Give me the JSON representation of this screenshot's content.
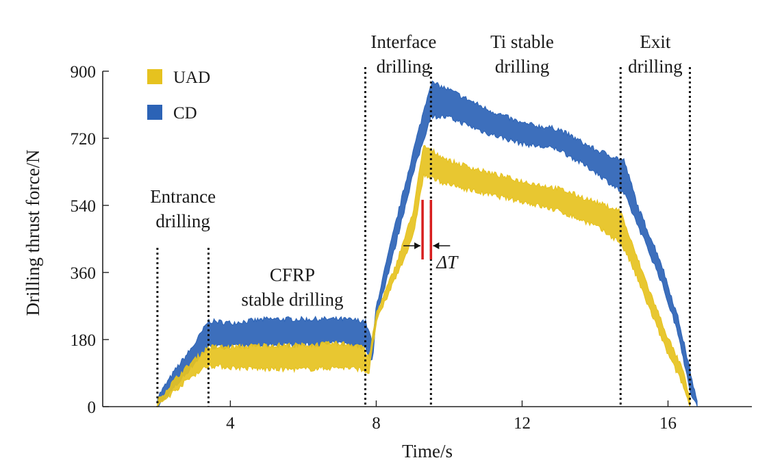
{
  "chart_data": {
    "type": "area",
    "title": "",
    "xlabel": "Time/s",
    "ylabel": "Drilling thrust force/N",
    "xlim": [
      0.5,
      18.3
    ],
    "ylim": [
      0,
      900
    ],
    "xticks": [
      4,
      8,
      12,
      16
    ],
    "yticks": [
      0,
      180,
      360,
      540,
      720,
      900
    ],
    "grid": false,
    "legend": {
      "position": "top-left",
      "entries": [
        "UAD",
        "CD"
      ]
    },
    "series": [
      {
        "name": "UAD",
        "color": "#e6c21f",
        "points": [
          {
            "x": 2.0,
            "lo": 0,
            "hi": 15
          },
          {
            "x": 2.5,
            "lo": 45,
            "hi": 75
          },
          {
            "x": 3.0,
            "lo": 85,
            "hi": 125
          },
          {
            "x": 3.4,
            "lo": 110,
            "hi": 160
          },
          {
            "x": 4.0,
            "lo": 105,
            "hi": 160
          },
          {
            "x": 5.0,
            "lo": 100,
            "hi": 165
          },
          {
            "x": 6.0,
            "lo": 100,
            "hi": 165
          },
          {
            "x": 7.0,
            "lo": 105,
            "hi": 170
          },
          {
            "x": 7.6,
            "lo": 100,
            "hi": 165
          },
          {
            "x": 7.8,
            "lo": 90,
            "hi": 130
          },
          {
            "x": 8.0,
            "lo": 225,
            "hi": 250
          },
          {
            "x": 8.5,
            "lo": 340,
            "hi": 370
          },
          {
            "x": 9.0,
            "lo": 450,
            "hi": 520
          },
          {
            "x": 9.3,
            "lo": 620,
            "hi": 700
          },
          {
            "x": 10.0,
            "lo": 595,
            "hi": 660
          },
          {
            "x": 11.0,
            "lo": 570,
            "hi": 630
          },
          {
            "x": 12.0,
            "lo": 550,
            "hi": 605
          },
          {
            "x": 13.0,
            "lo": 525,
            "hi": 585
          },
          {
            "x": 14.0,
            "lo": 485,
            "hi": 550
          },
          {
            "x": 14.7,
            "lo": 440,
            "hi": 525
          },
          {
            "x": 15.0,
            "lo": 380,
            "hi": 440
          },
          {
            "x": 15.5,
            "lo": 260,
            "hi": 310
          },
          {
            "x": 16.0,
            "lo": 140,
            "hi": 185
          },
          {
            "x": 16.4,
            "lo": 60,
            "hi": 100
          },
          {
            "x": 16.6,
            "lo": 0,
            "hi": 20
          }
        ]
      },
      {
        "name": "CD",
        "color": "#2c63b6",
        "points": [
          {
            "x": 2.0,
            "lo": 0,
            "hi": 25
          },
          {
            "x": 2.5,
            "lo": 55,
            "hi": 100
          },
          {
            "x": 3.0,
            "lo": 115,
            "hi": 165
          },
          {
            "x": 3.4,
            "lo": 160,
            "hi": 230
          },
          {
            "x": 4.0,
            "lo": 160,
            "hi": 225
          },
          {
            "x": 5.0,
            "lo": 165,
            "hi": 235
          },
          {
            "x": 6.0,
            "lo": 165,
            "hi": 235
          },
          {
            "x": 7.0,
            "lo": 170,
            "hi": 235
          },
          {
            "x": 7.7,
            "lo": 160,
            "hi": 230
          },
          {
            "x": 7.9,
            "lo": 120,
            "hi": 170
          },
          {
            "x": 8.0,
            "lo": 240,
            "hi": 270
          },
          {
            "x": 8.5,
            "lo": 420,
            "hi": 480
          },
          {
            "x": 9.0,
            "lo": 620,
            "hi": 680
          },
          {
            "x": 9.5,
            "lo": 780,
            "hi": 870
          },
          {
            "x": 10.0,
            "lo": 775,
            "hi": 850
          },
          {
            "x": 11.0,
            "lo": 735,
            "hi": 800
          },
          {
            "x": 12.0,
            "lo": 705,
            "hi": 760
          },
          {
            "x": 13.0,
            "lo": 690,
            "hi": 745
          },
          {
            "x": 14.0,
            "lo": 630,
            "hi": 690
          },
          {
            "x": 14.8,
            "lo": 570,
            "hi": 660
          },
          {
            "x": 15.2,
            "lo": 480,
            "hi": 530
          },
          {
            "x": 15.8,
            "lo": 340,
            "hi": 390
          },
          {
            "x": 16.3,
            "lo": 190,
            "hi": 230
          },
          {
            "x": 16.6,
            "lo": 40,
            "hi": 100
          },
          {
            "x": 16.8,
            "lo": 0,
            "hi": 10
          }
        ]
      }
    ],
    "phase_boundaries": [
      2.0,
      3.4,
      7.7,
      9.5,
      14.7,
      16.6
    ],
    "phase_labels": [
      {
        "lines": [
          "Entrance",
          "drilling"
        ],
        "x": 2.7,
        "y": 540
      },
      {
        "lines": [
          "CFRP",
          "stable drilling"
        ],
        "x": 5.7,
        "y": 330
      },
      {
        "lines": [
          "Interface",
          "drilling"
        ],
        "x": 8.75,
        "y": 955
      },
      {
        "lines": [
          "Ti stable",
          "drilling"
        ],
        "x": 12.0,
        "y": 955
      },
      {
        "lines": [
          "Exit",
          "drilling"
        ],
        "x": 15.65,
        "y": 955
      }
    ],
    "delta_t": {
      "label": "ΔT",
      "x_start": 9.27,
      "x_end": 9.5,
      "y_low": 395,
      "y_high": 555
    }
  }
}
